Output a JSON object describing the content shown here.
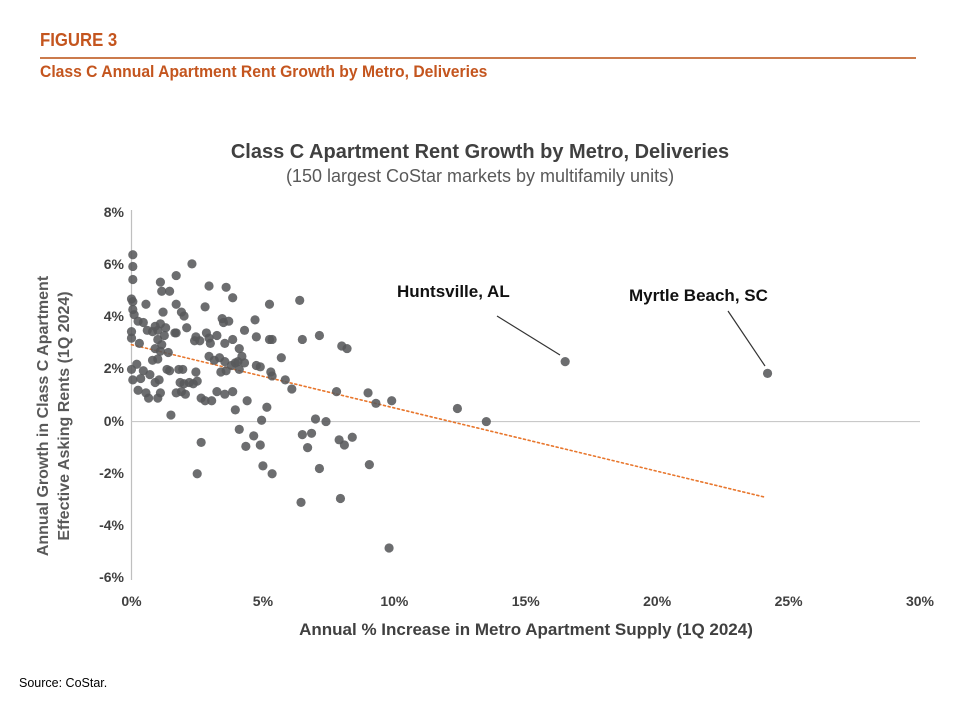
{
  "figure": {
    "label": "FIGURE 3",
    "heading": "Class C Annual Apartment Rent Growth by Metro, Deliveries"
  },
  "source_note": "Source: CoStar.",
  "colors": {
    "accent_orange": "#C4551E",
    "rule_orange": "#CB7B4C",
    "trendline_orange": "#E8762C",
    "point_gray": "#58595B",
    "axis_gray": "#BFBFBF",
    "text_dark_gray": "#404040"
  },
  "chart_data": {
    "type": "scatter",
    "title": "Class C Apartment Rent Growth by Metro, Deliveries",
    "subtitle": "(150 largest CoStar markets by multifamily units)",
    "xlabel": "Annual % Increase in Metro Apartment Supply (1Q 2024)",
    "ylabel": "Annual Growth in Class C Apartment Effective Asking Rents (1Q 2024)",
    "ylabel_lines": [
      "Annual Growth in Class C Apartment",
      "Effective Asking Rents (1Q 2024)"
    ],
    "xlim": [
      0,
      30
    ],
    "ylim": [
      -6,
      8
    ],
    "x_ticks": [
      "0%",
      "5%",
      "10%",
      "15%",
      "20%",
      "25%",
      "30%"
    ],
    "x_tick_values": [
      0,
      5,
      10,
      15,
      20,
      25,
      30
    ],
    "y_ticks": [
      "8%",
      "6%",
      "4%",
      "2%",
      "0%",
      "-2%",
      "-4%",
      "-6%"
    ],
    "y_tick_values": [
      8,
      6,
      4,
      2,
      0,
      -2,
      -4,
      -6
    ],
    "grid": "zero-line-and-y-axis-only",
    "legend": "none",
    "trendline": {
      "style": "dotted",
      "x_start": 0,
      "y_start": 2.95,
      "x_end": 24.1,
      "y_end": -2.9
    },
    "annotations": [
      {
        "label": "Huntsville, AL",
        "x": 16.5,
        "y": 2.3
      },
      {
        "label": "Myrtle Beach, SC",
        "x": 24.2,
        "y": 1.85
      }
    ],
    "points": [
      [
        0.05,
        6.4
      ],
      [
        0.05,
        5.95
      ],
      [
        0.05,
        5.45
      ],
      [
        0.0,
        4.7
      ],
      [
        0.05,
        4.6
      ],
      [
        0.05,
        4.3
      ],
      [
        0.1,
        4.1
      ],
      [
        0.25,
        3.85
      ],
      [
        0.45,
        3.8
      ],
      [
        0.0,
        3.45
      ],
      [
        0.0,
        3.2
      ],
      [
        0.3,
        3.0
      ],
      [
        0.2,
        2.2
      ],
      [
        0.0,
        2.0
      ],
      [
        0.45,
        1.95
      ],
      [
        0.7,
        1.8
      ],
      [
        0.35,
        1.65
      ],
      [
        0.05,
        1.6
      ],
      [
        0.25,
        1.2
      ],
      [
        0.55,
        1.1
      ],
      [
        2.3,
        6.05
      ],
      [
        1.7,
        5.6
      ],
      [
        1.1,
        5.35
      ],
      [
        1.15,
        5.0
      ],
      [
        1.45,
        5.0
      ],
      [
        0.55,
        4.5
      ],
      [
        1.7,
        4.5
      ],
      [
        1.2,
        4.2
      ],
      [
        1.9,
        4.2
      ],
      [
        2.0,
        4.05
      ],
      [
        0.9,
        3.65
      ],
      [
        1.1,
        3.75
      ],
      [
        0.6,
        3.5
      ],
      [
        0.8,
        3.45
      ],
      [
        1.0,
        3.5
      ],
      [
        1.3,
        3.6
      ],
      [
        1.65,
        3.4
      ],
      [
        2.1,
        3.6
      ],
      [
        1.25,
        3.3
      ],
      [
        1.0,
        3.15
      ],
      [
        1.15,
        2.95
      ],
      [
        1.4,
        2.65
      ],
      [
        1.1,
        2.7
      ],
      [
        0.9,
        2.8
      ],
      [
        0.8,
        2.35
      ],
      [
        1.0,
        2.4
      ],
      [
        1.35,
        2.0
      ],
      [
        1.45,
        1.95
      ],
      [
        1.8,
        2.0
      ],
      [
        1.95,
        2.0
      ],
      [
        1.05,
        1.6
      ],
      [
        0.9,
        1.5
      ],
      [
        1.85,
        1.5
      ],
      [
        2.0,
        1.45
      ],
      [
        2.2,
        1.5
      ],
      [
        1.9,
        1.15
      ],
      [
        2.05,
        1.05
      ],
      [
        1.7,
        1.1
      ],
      [
        1.1,
        1.1
      ],
      [
        1.5,
        0.25
      ],
      [
        0.65,
        0.9
      ],
      [
        1.0,
        0.9
      ],
      [
        1.7,
        3.4
      ],
      [
        2.45,
        3.25
      ],
      [
        2.45,
        1.9
      ],
      [
        2.35,
        1.45
      ],
      [
        2.5,
        1.55
      ],
      [
        2.65,
        0.9
      ],
      [
        2.8,
        0.8
      ],
      [
        2.5,
        -2.0
      ],
      [
        2.65,
        -0.8
      ],
      [
        2.8,
        4.4
      ],
      [
        2.95,
        5.2
      ],
      [
        3.6,
        5.15
      ],
      [
        3.85,
        4.75
      ],
      [
        3.45,
        3.95
      ],
      [
        3.5,
        3.8
      ],
      [
        3.7,
        3.85
      ],
      [
        4.7,
        3.9
      ],
      [
        2.85,
        3.4
      ],
      [
        2.95,
        3.2
      ],
      [
        3.25,
        3.3
      ],
      [
        2.4,
        3.1
      ],
      [
        2.6,
        3.1
      ],
      [
        3.0,
        3.0
      ],
      [
        3.55,
        3.0
      ],
      [
        3.85,
        3.15
      ],
      [
        4.3,
        3.5
      ],
      [
        4.75,
        3.25
      ],
      [
        5.25,
        3.15
      ],
      [
        2.95,
        2.5
      ],
      [
        3.15,
        2.35
      ],
      [
        3.35,
        2.45
      ],
      [
        3.55,
        2.3
      ],
      [
        3.8,
        2.15
      ],
      [
        3.95,
        2.25
      ],
      [
        4.1,
        2.0
      ],
      [
        3.6,
        1.95
      ],
      [
        3.4,
        1.9
      ],
      [
        4.05,
        2.3
      ],
      [
        4.3,
        2.25
      ],
      [
        3.25,
        1.15
      ],
      [
        3.55,
        1.05
      ],
      [
        3.85,
        1.15
      ],
      [
        4.1,
        2.8
      ],
      [
        4.2,
        2.5
      ],
      [
        3.05,
        0.8
      ],
      [
        3.95,
        0.45
      ],
      [
        4.4,
        0.8
      ],
      [
        4.1,
        -0.3
      ],
      [
        4.65,
        -0.55
      ],
      [
        4.35,
        -0.95
      ],
      [
        4.9,
        -0.9
      ],
      [
        5.0,
        -1.7
      ],
      [
        5.35,
        -2.0
      ],
      [
        5.25,
        4.5
      ],
      [
        5.35,
        3.15
      ],
      [
        4.75,
        2.15
      ],
      [
        4.9,
        2.1
      ],
      [
        5.3,
        1.9
      ],
      [
        5.35,
        1.75
      ],
      [
        5.85,
        1.6
      ],
      [
        6.1,
        1.25
      ],
      [
        5.7,
        2.45
      ],
      [
        5.15,
        0.55
      ],
      [
        4.95,
        0.05
      ],
      [
        6.4,
        4.65
      ],
      [
        6.5,
        3.15
      ],
      [
        6.5,
        -0.5
      ],
      [
        6.85,
        -0.45
      ],
      [
        6.7,
        -1.0
      ],
      [
        7.0,
        0.1
      ],
      [
        7.4,
        0.0
      ],
      [
        6.45,
        -3.1
      ],
      [
        7.15,
        -1.8
      ],
      [
        7.15,
        3.3
      ],
      [
        8.0,
        2.9
      ],
      [
        8.2,
        2.8
      ],
      [
        7.8,
        1.15
      ],
      [
        9.0,
        1.1
      ],
      [
        9.9,
        0.8
      ],
      [
        7.9,
        -0.7
      ],
      [
        8.1,
        -0.9
      ],
      [
        8.4,
        -0.6
      ],
      [
        9.05,
        -1.65
      ],
      [
        7.95,
        -2.95
      ],
      [
        9.8,
        -4.85
      ],
      [
        9.3,
        0.7
      ],
      [
        12.4,
        0.5
      ],
      [
        13.5,
        0.0
      ],
      [
        16.5,
        2.3
      ],
      [
        24.2,
        1.85
      ]
    ]
  }
}
